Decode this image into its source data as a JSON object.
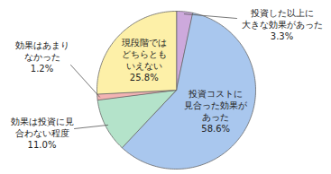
{
  "chart_data": {
    "type": "pie",
    "categories": [
      "投資した以上に\n大きな効果があった",
      "投資コストに\n見合った効果が\nあった",
      "効果は投資に見\n合わない程度",
      "効果はあまり\nなかった",
      "現段階では\nどちらとも\nいえない"
    ],
    "values": [
      3.3,
      58.6,
      11.0,
      1.2,
      25.8
    ],
    "value_labels": [
      "3.3%",
      "58.6%",
      "11.0%",
      "1.2%",
      "25.8%"
    ],
    "colors": [
      "#cda9dc",
      "#a9c7ee",
      "#b4e3ca",
      "#f2b3b3",
      "#fdf0a8"
    ],
    "data_labels": true
  }
}
